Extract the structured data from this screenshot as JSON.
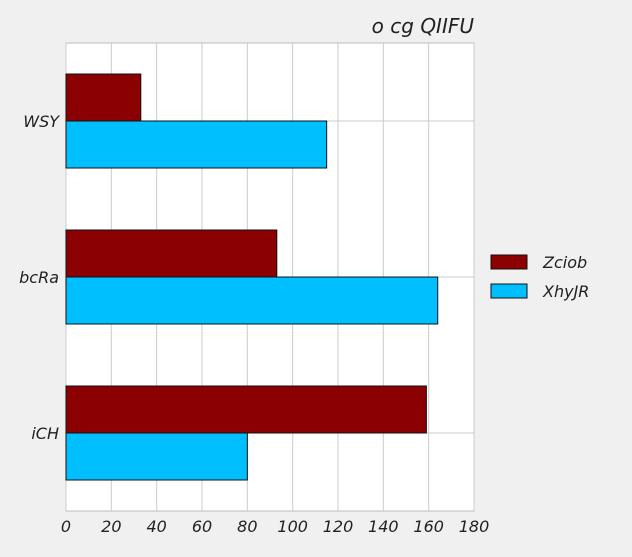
{
  "chart_data": {
    "type": "bar",
    "orientation": "horizontal",
    "title": "o cg QIIFU",
    "xlabel": "",
    "ylabel": "",
    "categories": [
      "WSY",
      "bcRa",
      "iCH"
    ],
    "series": [
      {
        "name": "Zciob",
        "values": [
          33,
          93,
          159
        ],
        "color": "#8b0000"
      },
      {
        "name": "XhyJR",
        "values": [
          115,
          164,
          80
        ],
        "color": "#00bfff"
      }
    ],
    "xlim": [
      0,
      180
    ],
    "xticks": [
      0,
      20,
      40,
      60,
      80,
      100,
      120,
      140,
      160,
      180
    ],
    "grid": true,
    "legend_position": "right"
  }
}
